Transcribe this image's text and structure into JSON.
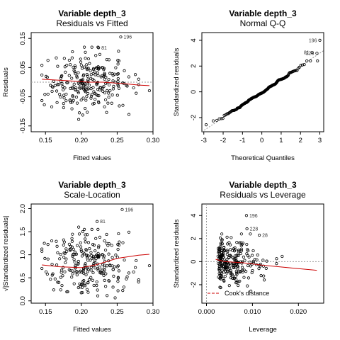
{
  "chart_data": [
    {
      "type": "scatter",
      "title": "Variable depth_3",
      "subtitle": "Residuals vs Fitted",
      "xlabel": "Fitted values",
      "ylabel": "Residuals",
      "xlim": [
        0.13,
        0.3
      ],
      "ylim": [
        -0.17,
        0.17
      ],
      "xticks": [
        "0.15",
        "0.20",
        "0.25",
        "0.30"
      ],
      "yticks": [
        "-0.15",
        "-0.05",
        "0.05",
        "0.15"
      ],
      "reference_line": 0,
      "labeled_points": [
        {
          "label": "196",
          "x": 0.255,
          "y": 0.155
        },
        {
          "label": "81",
          "x": 0.224,
          "y": 0.118
        }
      ],
      "smooth": {
        "x": [
          0.145,
          0.18,
          0.21,
          0.23,
          0.26,
          0.28,
          0.295
        ],
        "y": [
          0.01,
          0.005,
          0.0,
          0.0,
          -0.005,
          -0.01,
          -0.012
        ]
      }
    },
    {
      "type": "scatter",
      "title": "Variable depth_3",
      "subtitle": "Normal Q-Q",
      "xlabel": "Theoretical Quantiles",
      "ylabel": "Standardized residuals",
      "xlim": [
        -3.1,
        3.2
      ],
      "ylim": [
        -3.1,
        4.6
      ],
      "xticks": [
        "-3",
        "-2",
        "-1",
        "0",
        "1",
        "2",
        "3"
      ],
      "yticks": [
        "-2",
        "0",
        "2",
        "4"
      ],
      "labeled_points": [
        {
          "label": "196",
          "x": 3.0,
          "y": 4.0
        },
        {
          "label": "81",
          "x": 2.6,
          "y": 3.05
        },
        {
          "label": "228",
          "x": 2.85,
          "y": 3.0
        }
      ]
    },
    {
      "type": "scatter",
      "title": "Variable depth_3",
      "subtitle": "Scale-Location",
      "xlabel": "Fitted values",
      "ylabel": "√|Standardized residuals|",
      "xlim": [
        0.13,
        0.3
      ],
      "ylim": [
        -0.05,
        2.1
      ],
      "xticks": [
        "0.15",
        "0.20",
        "0.25",
        "0.30"
      ],
      "yticks": [
        "0.0",
        "0.5",
        "1.0",
        "1.5",
        "2.0"
      ],
      "labeled_points": [
        {
          "label": "196",
          "x": 0.257,
          "y": 1.98
        },
        {
          "label": "81",
          "x": 0.222,
          "y": 1.72
        }
      ],
      "smooth": {
        "x": [
          0.145,
          0.17,
          0.2,
          0.22,
          0.25,
          0.28,
          0.295
        ],
        "y": [
          0.78,
          0.74,
          0.72,
          0.78,
          0.92,
          0.99,
          1.01
        ]
      }
    },
    {
      "type": "scatter",
      "title": "Variable depth_3",
      "subtitle": "Residuals vs Leverage",
      "xlabel": "Leverage",
      "ylabel": "Standardized residuals",
      "xlim": [
        -0.001,
        0.0255
      ],
      "ylim": [
        -3.6,
        5.0
      ],
      "xticks": [
        "0.000",
        "0.010",
        "0.020"
      ],
      "yticks": [
        "-2",
        "0",
        "2",
        "4"
      ],
      "legend": {
        "label": "Cook's distance",
        "position": "bottom-left"
      },
      "labeled_points": [
        {
          "label": "196",
          "x": 0.0087,
          "y": 4.0
        },
        {
          "label": "228",
          "x": 0.0088,
          "y": 2.85
        },
        {
          "label": "28",
          "x": 0.0115,
          "y": 2.3
        }
      ],
      "smooth": {
        "x": [
          0.002,
          0.004,
          0.008,
          0.012,
          0.016,
          0.02,
          0.024
        ],
        "y": [
          0.2,
          0.0,
          -0.1,
          -0.3,
          -0.45,
          -0.6,
          -0.75
        ]
      }
    }
  ],
  "colors": {
    "axis": "#000000",
    "smooth": "#cc0000",
    "reference": "#999999",
    "point": "#000000"
  }
}
